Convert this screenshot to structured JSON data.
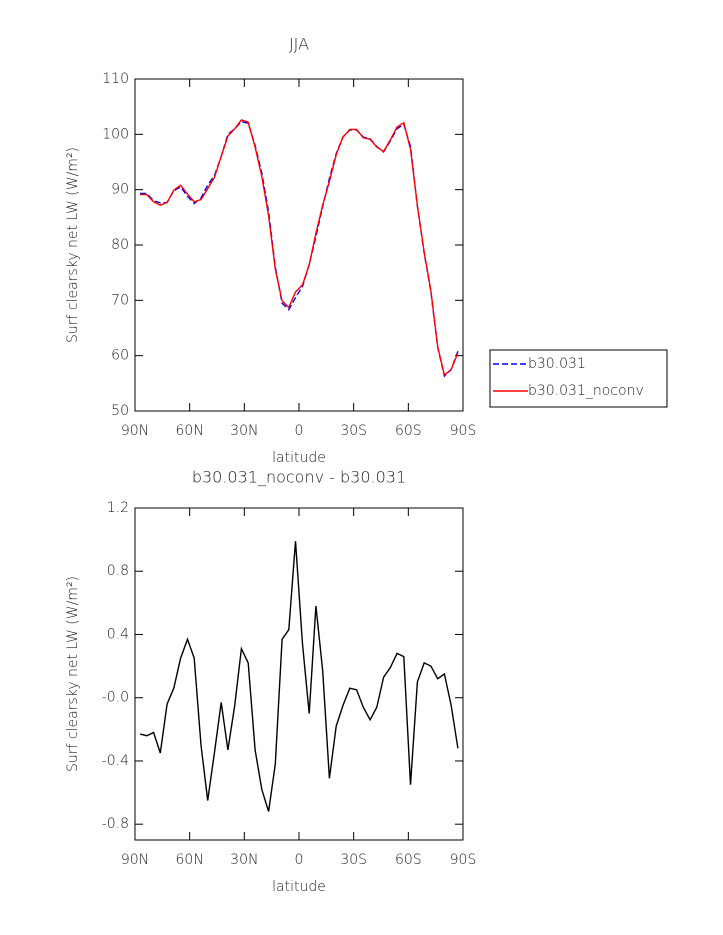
{
  "chart_data": [
    {
      "type": "line",
      "title": "JJA",
      "xlabel": "latitude",
      "ylabel": "Surf clearsky net LW (W/m²)",
      "x": [
        87.2,
        83.5,
        79.8,
        76.1,
        72.4,
        68.7,
        65.0,
        61.2,
        57.5,
        53.8,
        50.1,
        46.4,
        42.7,
        39.0,
        35.3,
        31.6,
        27.9,
        24.1,
        20.4,
        16.7,
        13.0,
        9.3,
        5.6,
        1.9,
        -1.9,
        -5.6,
        -9.3,
        -13.0,
        -16.7,
        -20.4,
        -24.1,
        -27.9,
        -31.6,
        -35.3,
        -39.0,
        -42.7,
        -46.4,
        -50.1,
        -53.8,
        -57.5,
        -61.2,
        -65.0,
        -68.7,
        -72.4,
        -76.1,
        -79.8,
        -83.5,
        -87.2
      ],
      "series": [
        {
          "name": "b30.031",
          "color": "#0000ff",
          "dashed": true,
          "values": [
            89.3,
            89.3,
            88.0,
            87.6,
            87.7,
            89.8,
            90.5,
            88.8,
            87.5,
            88.5,
            90.8,
            92.5,
            96.0,
            100.0,
            101.0,
            102.3,
            102.0,
            98.0,
            93.0,
            86.0,
            76.0,
            69.5,
            68.3,
            70.5,
            72.5,
            76.5,
            81.5,
            87.0,
            92.0,
            96.5,
            99.5,
            100.8,
            100.8,
            99.5,
            99.2,
            97.8,
            96.8,
            98.8,
            101.0,
            101.8,
            97.8,
            87.0,
            78.5,
            71.5,
            61.5,
            56.3,
            57.5,
            60.8
          ]
        },
        {
          "name": "b30.031_noconv",
          "color": "#ff0000",
          "dashed": false,
          "values": [
            89.1,
            89.1,
            87.8,
            87.2,
            87.7,
            89.9,
            90.8,
            89.2,
            87.8,
            88.2,
            90.2,
            92.2,
            96.0,
            99.7,
            101.0,
            102.6,
            102.2,
            97.7,
            92.4,
            85.3,
            75.6,
            69.9,
            68.7,
            71.5,
            72.8,
            76.4,
            82.1,
            87.2,
            91.5,
            96.3,
            99.5,
            100.9,
            100.9,
            99.4,
            99.1,
            97.7,
            96.9,
            99.0,
            101.3,
            102.1,
            97.3,
            87.1,
            78.7,
            71.7,
            61.6,
            56.5,
            57.5,
            60.5
          ]
        }
      ],
      "xlim": [
        90,
        -90
      ],
      "xticks": [
        {
          "value": 90,
          "label": "90N"
        },
        {
          "value": 60,
          "label": "60N"
        },
        {
          "value": 30,
          "label": "30N"
        },
        0,
        {
          "value": -30,
          "label": "30S"
        },
        {
          "value": -60,
          "label": "60S"
        },
        {
          "value": -90,
          "label": "90S"
        }
      ],
      "ylim": [
        50,
        110
      ],
      "yticks": [
        50,
        60,
        70,
        80,
        90,
        100,
        110
      ],
      "legend": "right"
    },
    {
      "type": "line",
      "title": "b30.031_noconv - b30.031",
      "xlabel": "latitude",
      "ylabel": "Surf clearsky net LW (W/m²)",
      "x": [
        87.2,
        83.5,
        79.8,
        76.1,
        72.4,
        68.7,
        65.0,
        61.2,
        57.5,
        53.8,
        50.1,
        46.4,
        42.7,
        39.0,
        35.3,
        31.6,
        27.9,
        24.1,
        20.4,
        16.7,
        13.0,
        9.3,
        5.6,
        1.9,
        -1.9,
        -5.6,
        -9.3,
        -13.0,
        -16.7,
        -20.4,
        -24.1,
        -27.9,
        -31.6,
        -35.3,
        -39.0,
        -42.7,
        -46.4,
        -50.1,
        -53.8,
        -57.5,
        -61.2,
        -65.0,
        -68.7,
        -72.4,
        -76.1,
        -79.8,
        -83.5,
        -87.2
      ],
      "color": "#000000",
      "values": [
        -0.23,
        -0.24,
        -0.22,
        -0.35,
        -0.04,
        0.06,
        0.25,
        0.37,
        0.25,
        -0.3,
        -0.65,
        -0.35,
        -0.03,
        -0.33,
        -0.05,
        0.31,
        0.22,
        -0.33,
        -0.58,
        -0.72,
        -0.42,
        0.37,
        0.43,
        0.99,
        0.34,
        -0.1,
        0.58,
        0.17,
        -0.51,
        -0.18,
        -0.05,
        0.06,
        0.05,
        -0.06,
        -0.14,
        -0.06,
        0.13,
        0.19,
        0.28,
        0.26,
        -0.55,
        0.1,
        0.22,
        0.2,
        0.12,
        0.15,
        -0.05,
        -0.32
      ],
      "xlim": [
        90,
        -90
      ],
      "xticks": [
        {
          "value": 90,
          "label": "90N"
        },
        {
          "value": 60,
          "label": "60N"
        },
        {
          "value": 30,
          "label": "30N"
        },
        0,
        {
          "value": -30,
          "label": "30S"
        },
        {
          "value": -60,
          "label": "60S"
        },
        {
          "value": -90,
          "label": "90S"
        }
      ],
      "ylim": [
        -0.9,
        1.2
      ],
      "yticks": [
        1.2,
        0.8,
        0.4,
        {
          "value": 0,
          "label": "-0.0"
        },
        -0.4,
        -0.8
      ]
    }
  ]
}
